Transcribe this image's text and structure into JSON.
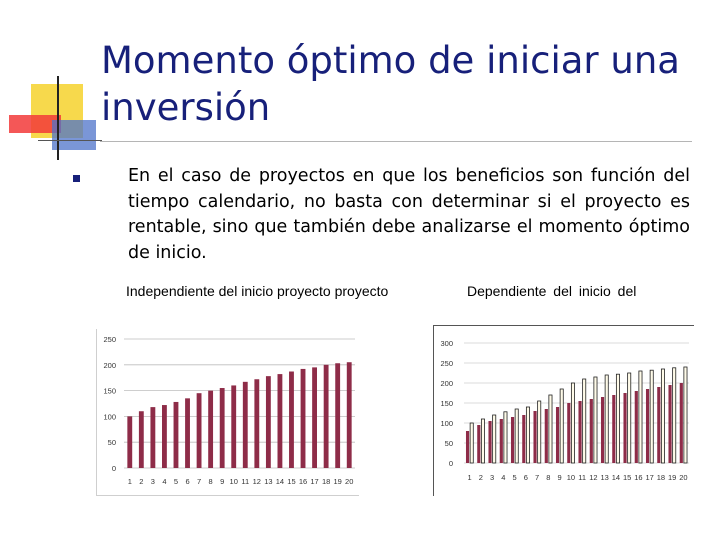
{
  "slide": {
    "title": "Momento óptimo de iniciar una inversión",
    "bullet": "En el caso de proyectos en que los beneficios son función del tiempo calendario, no basta con determinar si el proyecto es rentable, sino que también debe analizarse el momento óptimo de inicio.",
    "label_left": "Independiente del inicio proyecto proyecto",
    "label_right": "Dependiente del inicio del"
  },
  "colors": {
    "title": "#17207a",
    "bar_fill": "#8e2c48",
    "bar_right": "#8e2c48",
    "bar_outline": "#222222"
  },
  "chart_data": [
    {
      "type": "bar",
      "categories": [
        "1",
        "2",
        "3",
        "4",
        "5",
        "6",
        "7",
        "8",
        "9",
        "10",
        "11",
        "12",
        "13",
        "14",
        "15",
        "16",
        "17",
        "18",
        "19",
        "20"
      ],
      "values": [
        100,
        110,
        118,
        122,
        128,
        135,
        145,
        150,
        155,
        160,
        167,
        172,
        178,
        182,
        187,
        192,
        195,
        200,
        203,
        205
      ],
      "ylim": [
        0,
        250
      ],
      "yticks": [
        "0",
        "50",
        "100",
        "150",
        "200",
        "250"
      ],
      "grid": true
    },
    {
      "type": "bar",
      "categories": [
        "1",
        "2",
        "3",
        "4",
        "5",
        "6",
        "7",
        "8",
        "9",
        "10",
        "11",
        "12",
        "13",
        "14",
        "15",
        "16",
        "17",
        "18",
        "19",
        "20"
      ],
      "series": [
        {
          "values": [
            80,
            95,
            105,
            110,
            115,
            120,
            130,
            135,
            140,
            150,
            155,
            160,
            165,
            170,
            175,
            180,
            185,
            190,
            195,
            200
          ]
        },
        {
          "values": [
            100,
            110,
            120,
            128,
            135,
            140,
            155,
            170,
            185,
            200,
            210,
            215,
            220,
            222,
            225,
            230,
            232,
            235,
            238,
            240
          ]
        }
      ],
      "ylim": [
        0,
        300
      ],
      "yticks": [
        "0",
        "50",
        "100",
        "150",
        "200",
        "250",
        "300"
      ],
      "grid": true
    }
  ]
}
